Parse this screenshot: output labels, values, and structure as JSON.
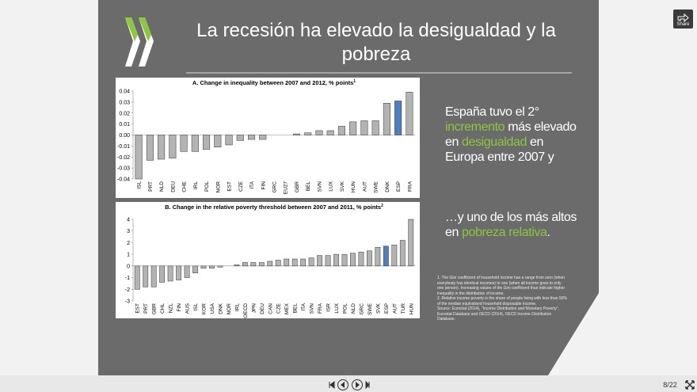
{
  "slide": {
    "title": "La recesión ha elevado la desigualdad y la pobreza",
    "highlight_color": "#8dc63f",
    "paragraphs": [
      {
        "parts": [
          {
            "text": "España tuvo el 2° "
          },
          {
            "text": "incremento",
            "highlight": true
          },
          {
            "text": " más elevado en "
          },
          {
            "text": "desigualdad",
            "highlight": true
          },
          {
            "text": " en Europa entre 2007 y"
          }
        ]
      },
      {
        "parts": [
          {
            "text": "…y uno de los más altos en "
          },
          {
            "text": "pobreza relativa",
            "highlight": true
          },
          {
            "text": "."
          }
        ]
      }
    ],
    "notes": [
      "1.  The Gini coefficient of household income has a range from zero (when everybody has identical incomes) to one (when all income goes to only one person). Increasing values of the Gini coefficient thus indicate higher inequality in the distribution of income.",
      "2.  Relative income poverty is the share of people living with less than 50% of the median equivalised household disposable income.",
      "Source: Eurostat (2014), \"Income Distribution and Monetary Poverty\", Eurostat Database and OECD (2014), OECD Income Distribution Database."
    ]
  },
  "chart_data": [
    {
      "type": "bar",
      "title": "A. Change in inequality between 2007 and 2012, % points",
      "title_note": "1",
      "categories": [
        "ISL",
        "PRT",
        "NLD",
        "DEU",
        "CHE",
        "IRL",
        "POL",
        "NOR",
        "EST",
        "CZE",
        "ITA",
        "FIN",
        "GRC",
        "EU27",
        "GBR",
        "BEL",
        "SVN",
        "LUX",
        "SVK",
        "HUN",
        "AUT",
        "SWE",
        "DNK",
        "ESP",
        "FRA"
      ],
      "values": [
        -0.04,
        -0.023,
        -0.022,
        -0.021,
        -0.015,
        -0.015,
        -0.013,
        -0.011,
        -0.009,
        -0.005,
        -0.004,
        -0.004,
        0,
        0,
        0.001,
        0.002,
        0.004,
        0.004,
        0.008,
        0.012,
        0.013,
        0.013,
        0.029,
        0.031,
        0.039
      ],
      "colors": [
        "#b3b3b3",
        "#b3b3b3",
        "#b3b3b3",
        "#b3b3b3",
        "#b3b3b3",
        "#b3b3b3",
        "#b3b3b3",
        "#b3b3b3",
        "#b3b3b3",
        "#b3b3b3",
        "#b3b3b3",
        "#b3b3b3",
        "#b3b3b3",
        "#b3b3b3",
        "#b3b3b3",
        "#b3b3b3",
        "#b3b3b3",
        "#b3b3b3",
        "#b3b3b3",
        "#b3b3b3",
        "#b3b3b3",
        "#b3b3b3",
        "#b3b3b3",
        "#4f7fbf",
        "#b3b3b3"
      ],
      "ylim": [
        -0.04,
        0.04
      ],
      "yticks": [
        -0.04,
        -0.03,
        -0.02,
        -0.01,
        {
          "value": 0,
          "label": "0.00"
        },
        0.01,
        0.02,
        0.03,
        0.04
      ]
    },
    {
      "type": "bar",
      "title": "B. Change in the relative poverty threshold between 2007 and 2011, % points",
      "title_note": "2",
      "categories": [
        "EST",
        "PRT",
        "GBR",
        "CHL",
        "NZL",
        "FIN",
        "AUS",
        "ISL",
        "KOR",
        "USA",
        "DNK",
        "NOR",
        "IRL",
        "OECD",
        "JPN",
        "DEU",
        "CAN",
        "CZE",
        "MEX",
        "BEL",
        "ITA",
        "SVN",
        "FRA",
        "ISR",
        "LUX",
        "POL",
        "NLD",
        "GRC",
        "SWE",
        "SVK",
        "ESP",
        "AUT",
        "TUR",
        "HUN"
      ],
      "values": [
        -2,
        -1.8,
        -1.8,
        -1.4,
        -1.3,
        -1.2,
        -1,
        -0.6,
        -0.2,
        -0.2,
        -0.1,
        0,
        0.1,
        0.3,
        0.3,
        0.3,
        0.4,
        0.5,
        0.6,
        0.6,
        0.6,
        0.7,
        0.9,
        0.9,
        1,
        1,
        1.1,
        1.2,
        1.3,
        1.6,
        1.7,
        1.8,
        2.2,
        4
      ],
      "colors": [
        "#b3b3b3",
        "#b3b3b3",
        "#b3b3b3",
        "#b3b3b3",
        "#b3b3b3",
        "#b3b3b3",
        "#b3b3b3",
        "#b3b3b3",
        "#b3b3b3",
        "#b3b3b3",
        "#b3b3b3",
        "#b3b3b3",
        "#b3b3b3",
        "#b3b3b3",
        "#b3b3b3",
        "#b3b3b3",
        "#b3b3b3",
        "#b3b3b3",
        "#b3b3b3",
        "#b3b3b3",
        "#b3b3b3",
        "#b3b3b3",
        "#b3b3b3",
        "#b3b3b3",
        "#b3b3b3",
        "#b3b3b3",
        "#b3b3b3",
        "#b3b3b3",
        "#b3b3b3",
        "#b3b3b3",
        "#4f7fbf",
        "#b3b3b3",
        "#b3b3b3",
        "#b3b3b3"
      ],
      "ylim": [
        -3,
        4
      ],
      "yticks": [
        -3,
        -2,
        -1,
        0,
        1,
        2,
        3,
        4
      ]
    }
  ],
  "player": {
    "share": "Share",
    "page": "8/22"
  }
}
